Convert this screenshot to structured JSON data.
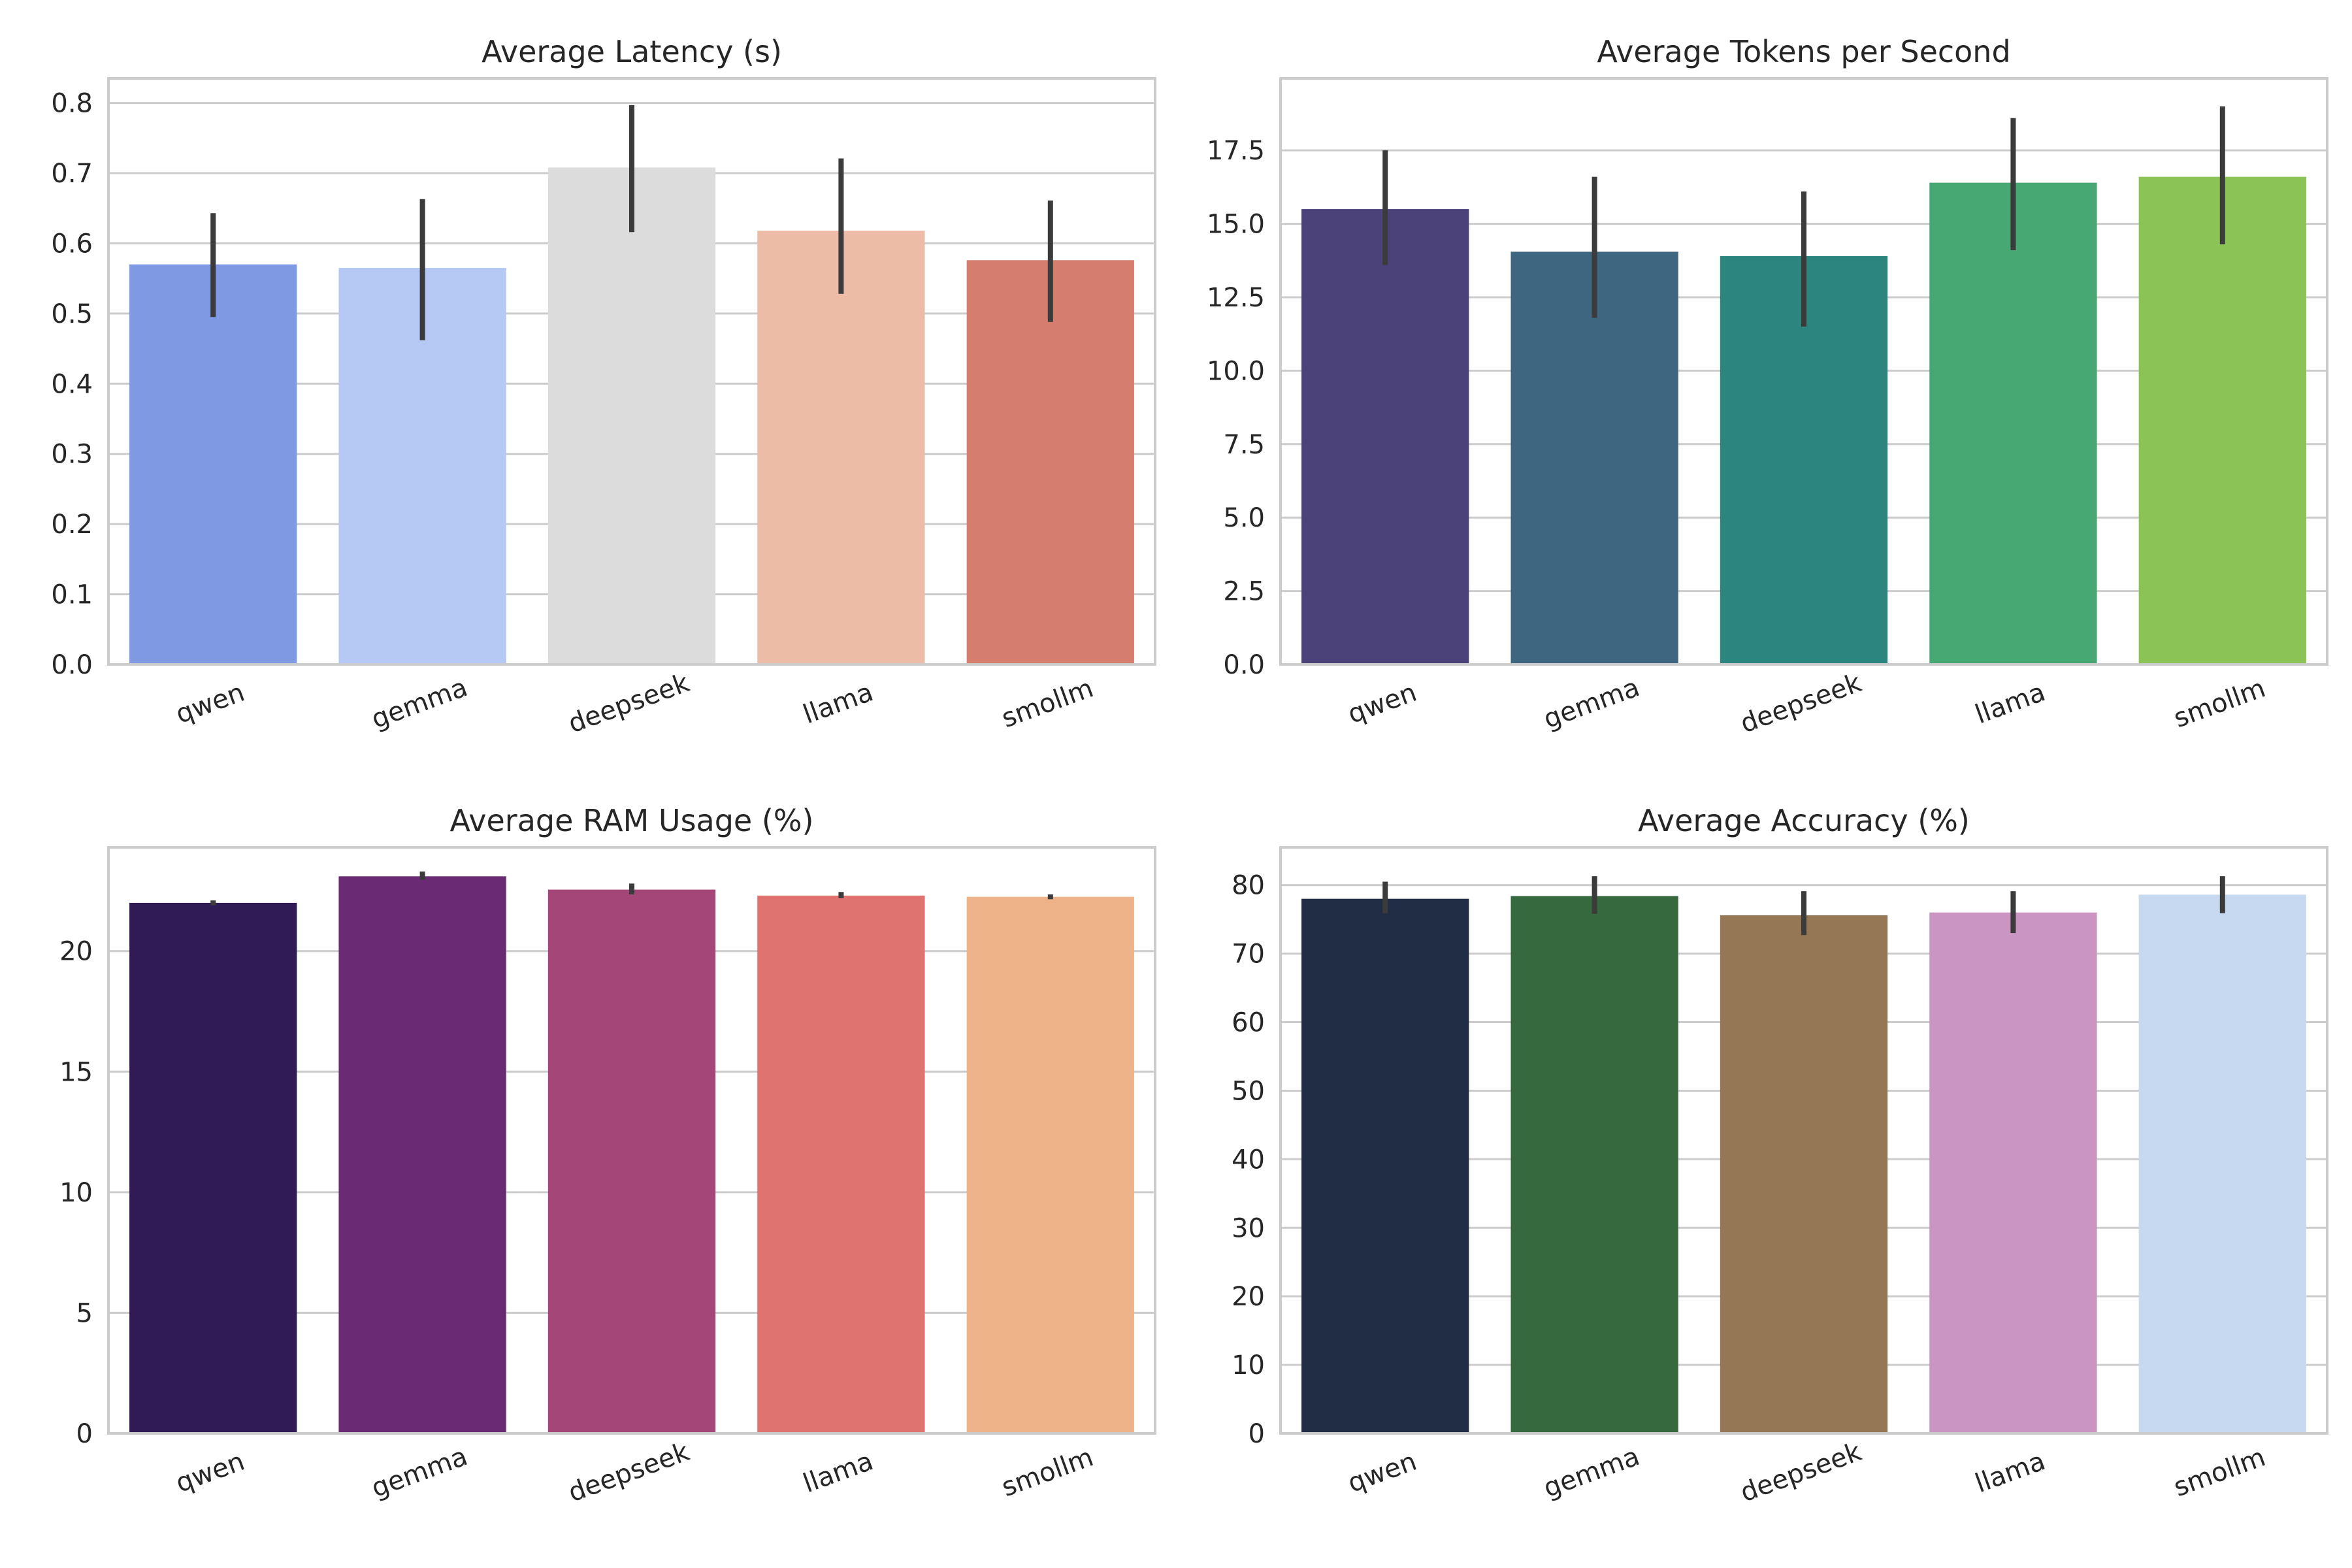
{
  "chart_data": [
    {
      "type": "bar",
      "title": "Average Latency (s)",
      "xlabel": "",
      "ylabel": "",
      "categories": [
        "qwen",
        "gemma",
        "deepseek",
        "llama",
        "smollm"
      ],
      "values": [
        0.57,
        0.565,
        0.708,
        0.618,
        0.576
      ],
      "error_low": [
        0.495,
        0.462,
        0.616,
        0.528,
        0.488
      ],
      "error_high": [
        0.643,
        0.663,
        0.797,
        0.721,
        0.661
      ],
      "colors": [
        "#7f9ae3",
        "#b5c9f4",
        "#dcdcdc",
        "#edbca6",
        "#d67e6d"
      ],
      "ylim": [
        0,
        0.835
      ],
      "yticks": [
        0.0,
        0.1,
        0.2,
        0.3,
        0.4,
        0.5,
        0.6,
        0.7,
        0.8
      ],
      "ytick_labels": [
        "0.0",
        "0.1",
        "0.2",
        "0.3",
        "0.4",
        "0.5",
        "0.6",
        "0.7",
        "0.8"
      ],
      "grid": true
    },
    {
      "type": "bar",
      "title": "Average Tokens per Second",
      "xlabel": "",
      "ylabel": "",
      "categories": [
        "qwen",
        "gemma",
        "deepseek",
        "llama",
        "smollm"
      ],
      "values": [
        15.5,
        14.05,
        13.9,
        16.4,
        16.6
      ],
      "error_low": [
        13.6,
        11.8,
        11.5,
        14.1,
        14.3
      ],
      "error_high": [
        17.5,
        16.6,
        16.1,
        18.6,
        19.0
      ],
      "colors": [
        "#4a4279",
        "#3f6680",
        "#2d8580",
        "#47a874",
        "#8bc356"
      ],
      "ylim": [
        0,
        19.95
      ],
      "yticks": [
        0,
        2.5,
        5,
        7.5,
        10,
        12.5,
        15,
        17.5
      ],
      "ytick_labels": [
        "0.0",
        "2.5",
        "5.0",
        "7.5",
        "10.0",
        "12.5",
        "15.0",
        "17.5"
      ],
      "grid": true
    },
    {
      "type": "bar",
      "title": "Average RAM Usage (%)",
      "xlabel": "",
      "ylabel": "",
      "categories": [
        "qwen",
        "gemma",
        "deepseek",
        "llama",
        "smollm"
      ],
      "values": [
        22.0,
        23.1,
        22.55,
        22.3,
        22.25
      ],
      "error_low": [
        21.9,
        22.95,
        22.35,
        22.2,
        22.15
      ],
      "error_high": [
        22.1,
        23.3,
        22.8,
        22.45,
        22.35
      ],
      "colors": [
        "#311b56",
        "#6a2b74",
        "#a54678",
        "#df7370",
        "#eeb389"
      ],
      "ylim": [
        0,
        24.3
      ],
      "yticks": [
        0,
        5,
        10,
        15,
        20
      ],
      "ytick_labels": [
        "0",
        "5",
        "10",
        "15",
        "20"
      ],
      "grid": true
    },
    {
      "type": "bar",
      "title": "Average Accuracy (%)",
      "xlabel": "",
      "ylabel": "",
      "categories": [
        "qwen",
        "gemma",
        "deepseek",
        "llama",
        "smollm"
      ],
      "values": [
        78.0,
        78.4,
        75.6,
        76.0,
        78.6
      ],
      "error_low": [
        75.9,
        75.8,
        72.7,
        73.0,
        75.9
      ],
      "error_high": [
        80.5,
        81.3,
        79.1,
        79.1,
        81.3
      ],
      "colors": [
        "#202d44",
        "#37693f",
        "#957755",
        "#ca95c1",
        "#c7d9f0"
      ],
      "ylim": [
        0,
        85.5
      ],
      "yticks": [
        0,
        10,
        20,
        30,
        40,
        50,
        60,
        70,
        80
      ],
      "ytick_labels": [
        "0",
        "10",
        "20",
        "30",
        "40",
        "50",
        "60",
        "70",
        "80"
      ],
      "grid": true
    }
  ]
}
